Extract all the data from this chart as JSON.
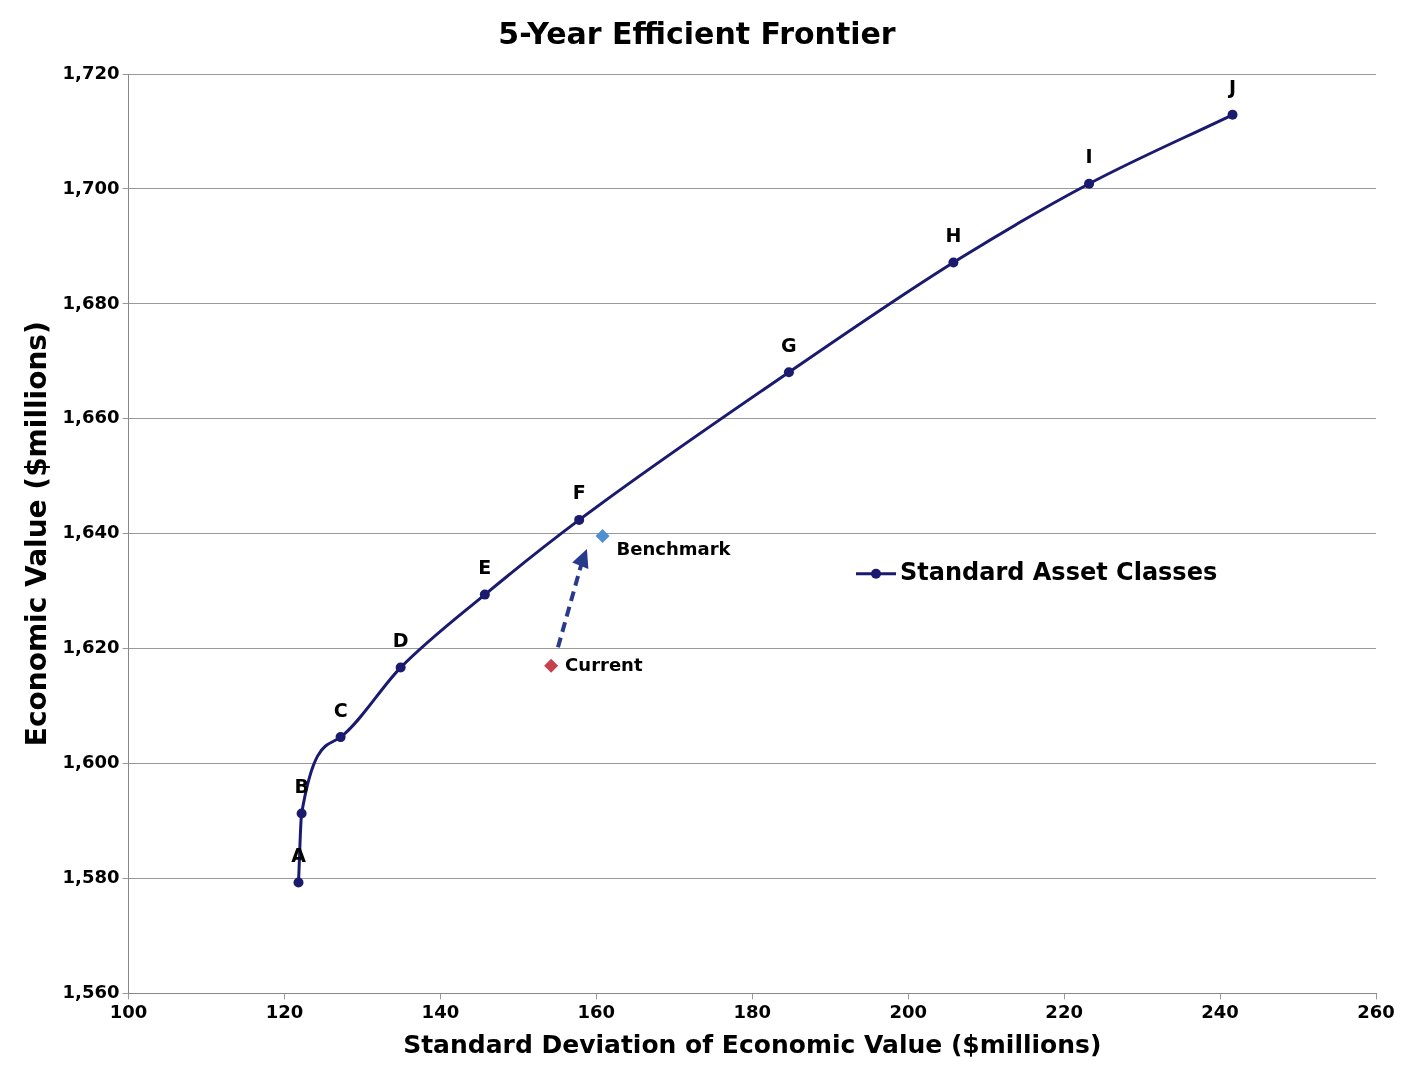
{
  "chart_data": {
    "type": "line",
    "title": "5-Year Efficient Frontier",
    "xlabel": "Standard Deviation of Economic Value ($millions)",
    "ylabel": "Economic Value ($millions)",
    "xlim": [
      100,
      260
    ],
    "xticks": [
      100,
      120,
      140,
      160,
      180,
      200,
      220,
      240,
      260
    ],
    "ylim": [
      1560,
      1720
    ],
    "yticks": [
      {
        "value": 1560,
        "label": "1,560"
      },
      {
        "value": 1580,
        "label": "1,580"
      },
      {
        "value": 1600,
        "label": "1,600"
      },
      {
        "value": 1620,
        "label": "1,620"
      },
      {
        "value": 1640,
        "label": "1,640"
      },
      {
        "value": 1660,
        "label": "1,660"
      },
      {
        "value": 1680,
        "label": "1,680"
      },
      {
        "value": 1700,
        "label": "1,700"
      },
      {
        "value": 1720,
        "label": "1,720"
      }
    ],
    "grid": "y",
    "legend": "right",
    "marker": "circle",
    "line_style": "solid",
    "series": [
      {
        "name": "Standard Asset Classes",
        "color": "#1a1a6e",
        "x": [
          121.8,
          122.2,
          127.2,
          134.9,
          145.7,
          157.8,
          184.7,
          205.8,
          223.2,
          241.6
        ],
        "values": [
          1579.3,
          1591.3,
          1604.6,
          1616.7,
          1629.4,
          1642.4,
          1668.1,
          1687.2,
          1700.9,
          1712.9
        ]
      },
      {
        "name": "Benchmark",
        "type": "scatter",
        "marker": "diamond",
        "color": "#4f8fd0",
        "x": [
          160.8
        ],
        "values": [
          1639.6
        ]
      },
      {
        "name": "Current",
        "type": "scatter",
        "marker": "diamond",
        "color": "#c8404a",
        "x": [
          154.2
        ],
        "values": [
          1617.0
        ]
      }
    ],
    "annotations": [
      {
        "text": "A",
        "x": 121.8,
        "y": 1579.3
      },
      {
        "text": "B",
        "x": 122.2,
        "y": 1591.3
      },
      {
        "text": "C",
        "x": 127.2,
        "y": 1604.6
      },
      {
        "text": "D",
        "x": 134.9,
        "y": 1616.7
      },
      {
        "text": "E",
        "x": 145.7,
        "y": 1629.4
      },
      {
        "text": "F",
        "x": 157.8,
        "y": 1642.4
      },
      {
        "text": "G",
        "x": 184.7,
        "y": 1668.1
      },
      {
        "text": "H",
        "x": 205.8,
        "y": 1687.2
      },
      {
        "text": "I",
        "x": 223.2,
        "y": 1700.9
      },
      {
        "text": "J",
        "x": 241.6,
        "y": 1712.9
      }
    ]
  }
}
